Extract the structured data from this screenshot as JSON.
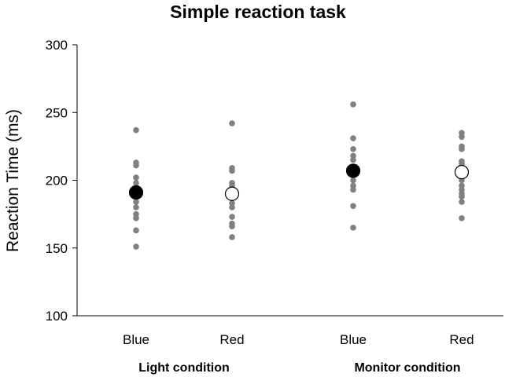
{
  "chart_data": {
    "type": "scatter",
    "title": "Simple reaction task",
    "xlabel": "",
    "ylabel": "Reaction Time (ms)",
    "ylim": [
      100,
      300
    ],
    "yticks": [
      100,
      150,
      200,
      250,
      300
    ],
    "grid": false,
    "categories": [
      "Blue",
      "Red",
      "Blue",
      "Red"
    ],
    "groups": [
      {
        "label": "Light condition",
        "categories": [
          0,
          1
        ]
      },
      {
        "label": "Monitor condition",
        "categories": [
          2,
          3
        ]
      }
    ],
    "marker_colors": {
      "individual": "#808080",
      "mean_blue": "#000000",
      "mean_red": "#ffffff"
    },
    "series": [
      {
        "category": "Blue",
        "group": "Light condition",
        "mean": 191,
        "values": [
          237,
          213,
          211,
          202,
          198,
          193,
          188,
          184,
          180,
          175,
          172,
          163,
          151
        ]
      },
      {
        "category": "Red",
        "group": "Light condition",
        "mean": 190,
        "values": [
          242,
          209,
          207,
          198,
          196,
          190,
          183,
          180,
          173,
          168,
          166,
          158
        ]
      },
      {
        "category": "Blue",
        "group": "Monitor condition",
        "mean": 207,
        "values": [
          256,
          231,
          223,
          218,
          215,
          210,
          206,
          200,
          196,
          193,
          181,
          165
        ]
      },
      {
        "category": "Red",
        "group": "Monitor condition",
        "mean": 206,
        "values": [
          235,
          232,
          225,
          223,
          214,
          212,
          207,
          200,
          196,
          193,
          190,
          188,
          184,
          172
        ]
      }
    ]
  }
}
